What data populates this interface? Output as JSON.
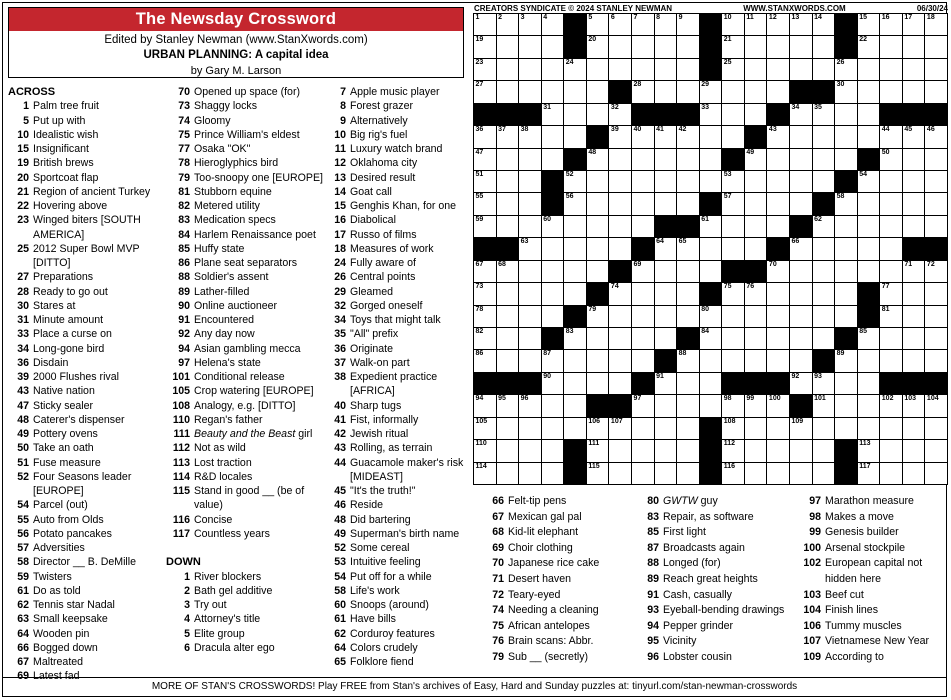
{
  "colors": {
    "masthead_red": "#c4262e"
  },
  "header": {
    "title": "The Newsday Crossword",
    "edited": "Edited by Stanley Newman (www.StanXwords.com)",
    "theme": "URBAN PLANNING: A capital idea",
    "byline": "by Gary M. Larson"
  },
  "grid_header": {
    "left": "CREATORS SYNDICATE © 2024 STANLEY NEWMAN",
    "center": "WWW.STANXWORDS.COM",
    "right": "06/30/24"
  },
  "clues": {
    "across_label": "ACROSS",
    "down_label": "DOWN",
    "across_col1": [
      {
        "n": "1",
        "t": "Palm tree fruit"
      },
      {
        "n": "5",
        "t": "Put up with"
      },
      {
        "n": "10",
        "t": "Idealistic wish"
      },
      {
        "n": "15",
        "t": "Insignificant"
      },
      {
        "n": "19",
        "t": "British brews"
      },
      {
        "n": "20",
        "t": "Sportcoat flap"
      },
      {
        "n": "21",
        "t": "Region of ancient Turkey"
      },
      {
        "n": "22",
        "t": "Hovering above"
      },
      {
        "n": "23",
        "t": "Winged biters [SOUTH AMERICA]"
      },
      {
        "n": "25",
        "t": "2012 Super Bowl MVP [DITTO]"
      },
      {
        "n": "27",
        "t": "Preparations"
      },
      {
        "n": "28",
        "t": "Ready to go out"
      },
      {
        "n": "30",
        "t": "Stares at"
      },
      {
        "n": "31",
        "t": "Minute amount"
      },
      {
        "n": "33",
        "t": "Place a curse on"
      },
      {
        "n": "34",
        "t": "Long-gone bird"
      },
      {
        "n": "36",
        "t": "Disdain"
      },
      {
        "n": "39",
        "t": "2000 Flushes rival"
      },
      {
        "n": "43",
        "t": "Native nation"
      },
      {
        "n": "47",
        "t": "Sticky sealer"
      },
      {
        "n": "48",
        "t": "Caterer's dispenser"
      },
      {
        "n": "49",
        "t": "Pottery ovens"
      },
      {
        "n": "50",
        "t": "Take an oath"
      },
      {
        "n": "51",
        "t": "Fuse measure"
      },
      {
        "n": "52",
        "t": "Four Seasons leader [EUROPE]"
      },
      {
        "n": "54",
        "t": "Parcel (out)"
      },
      {
        "n": "55",
        "t": "Auto from Olds"
      },
      {
        "n": "56",
        "t": "Potato pancakes"
      },
      {
        "n": "57",
        "t": "Adversities"
      },
      {
        "n": "58",
        "t": "Director __ B. DeMille"
      },
      {
        "n": "59",
        "t": "Twisters"
      },
      {
        "n": "61",
        "t": "Do as told"
      },
      {
        "n": "62",
        "t": "Tennis star Nadal"
      },
      {
        "n": "63",
        "t": "Small keepsake"
      },
      {
        "n": "64",
        "t": "Wooden pin"
      },
      {
        "n": "66",
        "t": "Bogged down"
      },
      {
        "n": "67",
        "t": "Maltreated"
      },
      {
        "n": "69",
        "t": "Latest fad"
      }
    ],
    "across_col2": [
      {
        "n": "70",
        "t": "Opened up space (for)"
      },
      {
        "n": "73",
        "t": "Shaggy locks"
      },
      {
        "n": "74",
        "t": "Gloomy"
      },
      {
        "n": "75",
        "t": "Prince William's eldest"
      },
      {
        "n": "77",
        "t": "Osaka \"OK\""
      },
      {
        "n": "78",
        "t": "Hieroglyphics bird"
      },
      {
        "n": "79",
        "t": "Too-snoopy one [EUROPE]"
      },
      {
        "n": "81",
        "t": "Stubborn equine"
      },
      {
        "n": "82",
        "t": "Metered utility"
      },
      {
        "n": "83",
        "t": "Medication specs"
      },
      {
        "n": "84",
        "t": "Harlem Renaissance poet"
      },
      {
        "n": "85",
        "t": "Huffy state"
      },
      {
        "n": "86",
        "t": "Plane seat separators"
      },
      {
        "n": "88",
        "t": "Soldier's assent"
      },
      {
        "n": "89",
        "t": "Lather-filled"
      },
      {
        "n": "90",
        "t": "Online auctioneer"
      },
      {
        "n": "91",
        "t": "Encountered"
      },
      {
        "n": "92",
        "t": "Any day now"
      },
      {
        "n": "94",
        "t": "Asian gambling mecca"
      },
      {
        "n": "97",
        "t": "Helena's state"
      },
      {
        "n": "101",
        "t": "Conditional release"
      },
      {
        "n": "105",
        "t": "Crop watering [EUROPE]"
      },
      {
        "n": "108",
        "t": "Analogy, e.g. [DITTO]"
      },
      {
        "n": "110",
        "t": "Regan's father"
      },
      {
        "n": "111",
        "t": "*Beauty and the Beast* girl"
      },
      {
        "n": "112",
        "t": "Not as wild"
      },
      {
        "n": "113",
        "t": "Lost traction"
      },
      {
        "n": "114",
        "t": "R&D locales"
      },
      {
        "n": "115",
        "t": "Stand in good __ (be of value)"
      },
      {
        "n": "116",
        "t": "Concise"
      },
      {
        "n": "117",
        "t": "Countless years"
      }
    ],
    "down_col2": [
      {
        "n": "1",
        "t": "River blockers"
      },
      {
        "n": "2",
        "t": "Bath gel additive"
      },
      {
        "n": "3",
        "t": "Try out"
      },
      {
        "n": "4",
        "t": "Attorney's title"
      },
      {
        "n": "5",
        "t": "Elite group"
      },
      {
        "n": "6",
        "t": "Dracula alter ego"
      }
    ],
    "down_col3": [
      {
        "n": "7",
        "t": "Apple music player"
      },
      {
        "n": "8",
        "t": "Forest grazer"
      },
      {
        "n": "9",
        "t": "Alternatively"
      },
      {
        "n": "10",
        "t": "Big rig's fuel"
      },
      {
        "n": "11",
        "t": "Luxury watch brand"
      },
      {
        "n": "12",
        "t": "Oklahoma city"
      },
      {
        "n": "13",
        "t": "Desired result"
      },
      {
        "n": "14",
        "t": "Goat call"
      },
      {
        "n": "15",
        "t": "Genghis Khan, for one"
      },
      {
        "n": "16",
        "t": "Diabolical"
      },
      {
        "n": "17",
        "t": "Russo of films"
      },
      {
        "n": "18",
        "t": "Measures of work"
      },
      {
        "n": "24",
        "t": "Fully aware of"
      },
      {
        "n": "26",
        "t": "Central points"
      },
      {
        "n": "29",
        "t": "Gleamed"
      },
      {
        "n": "32",
        "t": "Gorged oneself"
      },
      {
        "n": "34",
        "t": "Toys that might talk"
      },
      {
        "n": "35",
        "t": "\"All\" prefix"
      },
      {
        "n": "36",
        "t": "Originate"
      },
      {
        "n": "37",
        "t": "Walk-on part"
      },
      {
        "n": "38",
        "t": "Expedient practice [AFRICA]"
      },
      {
        "n": "40",
        "t": "Sharp tugs"
      },
      {
        "n": "41",
        "t": "Fist, informally"
      },
      {
        "n": "42",
        "t": "Jewish ritual"
      },
      {
        "n": "43",
        "t": "Rolling, as terrain"
      },
      {
        "n": "44",
        "t": "Guacamole maker's risk [MIDEAST]"
      },
      {
        "n": "45",
        "t": "\"It's the truth!\""
      },
      {
        "n": "46",
        "t": "Reside"
      },
      {
        "n": "48",
        "t": "Did bartering"
      },
      {
        "n": "49",
        "t": "Superman's birth name"
      },
      {
        "n": "52",
        "t": "Some cereal"
      },
      {
        "n": "53",
        "t": "Intuitive feeling"
      },
      {
        "n": "54",
        "t": "Put off for a while"
      },
      {
        "n": "58",
        "t": "Life's work"
      },
      {
        "n": "60",
        "t": "Snoops (around)"
      },
      {
        "n": "61",
        "t": "Have bills"
      },
      {
        "n": "62",
        "t": "Corduroy features"
      },
      {
        "n": "64",
        "t": "Colors crudely"
      },
      {
        "n": "65",
        "t": "Folklore fiend"
      }
    ],
    "bottom_col1": [
      {
        "n": "66",
        "t": "Felt-tip pens"
      },
      {
        "n": "67",
        "t": "Mexican gal pal"
      },
      {
        "n": "68",
        "t": "Kid-lit elephant"
      },
      {
        "n": "69",
        "t": "Choir clothing"
      },
      {
        "n": "70",
        "t": "Japanese rice cake"
      },
      {
        "n": "71",
        "t": "Desert haven"
      },
      {
        "n": "72",
        "t": "Teary-eyed"
      },
      {
        "n": "74",
        "t": "Needing a cleaning"
      },
      {
        "n": "75",
        "t": "African antelopes"
      },
      {
        "n": "76",
        "t": "Brain scans: Abbr."
      },
      {
        "n": "79",
        "t": "Sub __ (secretly)"
      }
    ],
    "bottom_col2": [
      {
        "n": "80",
        "t": "*GWTW* guy"
      },
      {
        "n": "83",
        "t": "Repair, as software"
      },
      {
        "n": "85",
        "t": "First light"
      },
      {
        "n": "87",
        "t": "Broadcasts again"
      },
      {
        "n": "88",
        "t": "Longed (for)"
      },
      {
        "n": "89",
        "t": "Reach great heights"
      },
      {
        "n": "91",
        "t": "Cash, casually"
      },
      {
        "n": "93",
        "t": "Eyeball-bending drawings"
      },
      {
        "n": "94",
        "t": "Pepper grinder"
      },
      {
        "n": "95",
        "t": "Vicinity"
      },
      {
        "n": "96",
        "t": "Lobster cousin"
      }
    ],
    "bottom_col3": [
      {
        "n": "97",
        "t": "Marathon measure"
      },
      {
        "n": "98",
        "t": "Makes a move"
      },
      {
        "n": "99",
        "t": "Genesis builder"
      },
      {
        "n": "100",
        "t": "Arsenal stockpile"
      },
      {
        "n": "102",
        "t": "European capital not hidden here"
      },
      {
        "n": "103",
        "t": "Beef cut"
      },
      {
        "n": "104",
        "t": "Finish lines"
      },
      {
        "n": "106",
        "t": "Tummy muscles"
      },
      {
        "n": "107",
        "t": "Vietnamese New Year"
      },
      {
        "n": "109",
        "t": "According to"
      }
    ]
  },
  "grid": {
    "size": 21,
    "rows": [
      [
        "1",
        "2",
        "3",
        "4",
        "#",
        "5",
        "6",
        "7",
        "8",
        "9",
        "#",
        "10",
        "11",
        "12",
        "13",
        "14",
        "#",
        "15",
        "16",
        "17",
        "18"
      ],
      [
        "19",
        "",
        "",
        "",
        "#",
        "20",
        "",
        "",
        "",
        "",
        "#",
        "21",
        "",
        "",
        "",
        "",
        "#",
        "22",
        "",
        "",
        ""
      ],
      [
        "23",
        "",
        "",
        "",
        "24",
        "",
        "",
        "",
        "",
        "",
        "#",
        "25",
        "",
        "",
        "",
        "",
        "26",
        "",
        "",
        "",
        ""
      ],
      [
        "27",
        "",
        "",
        "",
        "",
        "",
        "#",
        "28",
        "",
        "",
        "29",
        "",
        "",
        "",
        "#",
        "#",
        "30",
        "",
        "",
        "",
        ""
      ],
      [
        "#",
        "#",
        "#",
        "31",
        "",
        "",
        "32",
        "#",
        "#",
        "#",
        "33",
        "",
        "",
        "#",
        "34",
        "35",
        "",
        "",
        "#",
        "#",
        "#"
      ],
      [
        "36",
        "37",
        "38",
        "",
        "",
        "#",
        "39",
        "40",
        "41",
        "42",
        "",
        "",
        "#",
        "43",
        "",
        "",
        "",
        "",
        "44",
        "45",
        "46"
      ],
      [
        "47",
        "",
        "",
        "",
        "#",
        "48",
        "",
        "",
        "",
        "",
        "",
        "#",
        "49",
        "",
        "",
        "",
        "",
        "#",
        "50",
        "",
        ""
      ],
      [
        "51",
        "",
        "",
        "#",
        "52",
        "",
        "",
        "",
        "",
        "",
        "",
        "53",
        "",
        "",
        "",
        "",
        "#",
        "54",
        "",
        "",
        ""
      ],
      [
        "55",
        "",
        "",
        "#",
        "56",
        "",
        "",
        "",
        "",
        "",
        "#",
        "57",
        "",
        "",
        "",
        "#",
        "58",
        "",
        "",
        "",
        ""
      ],
      [
        "59",
        "",
        "",
        "60",
        "",
        "",
        "",
        "",
        "#",
        "#",
        "61",
        "",
        "",
        "",
        "#",
        "62",
        "",
        "",
        "",
        "",
        ""
      ],
      [
        "#",
        "#",
        "63",
        "",
        "",
        "",
        "",
        "#",
        "64",
        "65",
        "",
        "",
        "",
        "#",
        "66",
        "",
        "",
        "",
        "",
        "#",
        "#"
      ],
      [
        "67",
        "68",
        "",
        "",
        "",
        "",
        "#",
        "69",
        "",
        "",
        "",
        "#",
        "#",
        "70",
        "",
        "",
        "",
        "",
        "",
        "71",
        "72"
      ],
      [
        "73",
        "",
        "",
        "",
        "",
        "#",
        "74",
        "",
        "",
        "",
        "#",
        "75",
        "76",
        "",
        "",
        "",
        "",
        "#",
        "77",
        "",
        ""
      ],
      [
        "78",
        "",
        "",
        "",
        "#",
        "79",
        "",
        "",
        "",
        "",
        "80",
        "",
        "",
        "",
        "",
        "",
        "",
        "#",
        "81",
        "",
        ""
      ],
      [
        "82",
        "",
        "",
        "#",
        "83",
        "",
        "",
        "",
        "",
        "#",
        "84",
        "",
        "",
        "",
        "",
        "",
        "#",
        "85",
        "",
        "",
        ""
      ],
      [
        "86",
        "",
        "",
        "87",
        "",
        "",
        "",
        "",
        "#",
        "88",
        "",
        "",
        "",
        "",
        "",
        "#",
        "89",
        "",
        "",
        "",
        ""
      ],
      [
        "#",
        "#",
        "#",
        "90",
        "",
        "",
        "",
        "#",
        "91",
        "",
        "",
        "#",
        "#",
        "#",
        "92",
        "93",
        "",
        "",
        "#",
        "#",
        "#"
      ],
      [
        "94",
        "95",
        "96",
        "",
        "",
        "#",
        "#",
        "97",
        "",
        "",
        "",
        "98",
        "99",
        "100",
        "#",
        "101",
        "",
        "",
        "102",
        "103",
        "104"
      ],
      [
        "105",
        "",
        "",
        "",
        "",
        "106",
        "107",
        "",
        "",
        "",
        "#",
        "108",
        "",
        "",
        "109",
        "",
        "",
        "",
        "",
        "",
        ""
      ],
      [
        "110",
        "",
        "",
        "",
        "#",
        "111",
        "",
        "",
        "",
        "",
        "#",
        "112",
        "",
        "",
        "",
        "",
        "#",
        "113",
        "",
        "",
        ""
      ],
      [
        "114",
        "",
        "",
        "",
        "#",
        "115",
        "",
        "",
        "",
        "",
        "#",
        "116",
        "",
        "",
        "",
        "",
        "#",
        "117",
        "",
        "",
        ""
      ]
    ]
  },
  "footer": {
    "text": "MORE OF STAN'S CROSSWORDS! Play FREE from Stan's archives of Easy, Hard and Sunday puzzles at: tinyurl.com/stan-newman-crosswords"
  }
}
